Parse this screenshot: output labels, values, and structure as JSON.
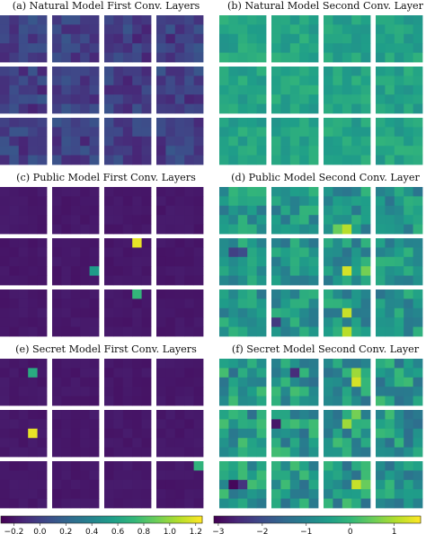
{
  "colormap": "viridis",
  "chart_data": [
    {
      "type": "heatmap",
      "title": "(a) Natural Model First Conv. Layers",
      "grid": "3x4 filters, 5x5 each",
      "colorbar_ref": "left",
      "value_range": [
        -0.15,
        0.12
      ],
      "hotspots": []
    },
    {
      "type": "heatmap",
      "title": "(b) Natural Model Second Conv. Layer",
      "grid": "3x4 filters, 5x5 each",
      "colorbar_ref": "right",
      "value_range": [
        -0.7,
        -0.05
      ],
      "hotspots": []
    },
    {
      "type": "heatmap",
      "title": "(c) Public Model First Conv. Layers",
      "grid": "3x4 filters, 5x5 each",
      "colorbar_ref": "left",
      "value_range": [
        -0.22,
        -0.18
      ],
      "hotspots": [
        {
          "tile": [
            1,
            2
          ],
          "cell": [
            0,
            3
          ],
          "value": 1.2
        },
        {
          "tile": [
            1,
            1
          ],
          "cell": [
            3,
            4
          ],
          "value": 0.55
        },
        {
          "tile": [
            2,
            2
          ],
          "cell": [
            0,
            3
          ],
          "value": 0.72
        }
      ]
    },
    {
      "type": "heatmap",
      "title": "(d) Public Model Second Conv. Layer",
      "grid": "3x4 filters, 5x5 each",
      "colorbar_ref": "right",
      "value_range": [
        -1.3,
        0.0
      ],
      "hotspots": [
        {
          "tile": [
            1,
            0
          ],
          "cell": [
            1,
            1
          ],
          "value": -2.2
        },
        {
          "tile": [
            1,
            0
          ],
          "cell": [
            1,
            2
          ],
          "value": -2.0
        },
        {
          "tile": [
            1,
            2
          ],
          "cell": [
            3,
            2
          ],
          "value": 1.3
        },
        {
          "tile": [
            1,
            2
          ],
          "cell": [
            3,
            4
          ],
          "value": 0.6
        },
        {
          "tile": [
            0,
            2
          ],
          "cell": [
            4,
            2
          ],
          "value": 1.1
        },
        {
          "tile": [
            0,
            2
          ],
          "cell": [
            4,
            1
          ],
          "value": 0.5
        },
        {
          "tile": [
            2,
            2
          ],
          "cell": [
            2,
            2
          ],
          "value": 1.2
        },
        {
          "tile": [
            2,
            2
          ],
          "cell": [
            4,
            2
          ],
          "value": 1.1
        },
        {
          "tile": [
            2,
            1
          ],
          "cell": [
            3,
            0
          ],
          "value": -2.3
        }
      ]
    },
    {
      "type": "heatmap",
      "title": "(e) Secret Model First Conv. Layers",
      "grid": "3x4 filters, 5x5 each",
      "colorbar_ref": "left",
      "value_range": [
        -0.22,
        -0.18
      ],
      "hotspots": [
        {
          "tile": [
            0,
            0
          ],
          "cell": [
            1,
            3
          ],
          "value": 0.65
        },
        {
          "tile": [
            1,
            0
          ],
          "cell": [
            2,
            3
          ],
          "value": 1.2
        },
        {
          "tile": [
            2,
            3
          ],
          "cell": [
            0,
            4
          ],
          "value": 0.7
        }
      ]
    },
    {
      "type": "heatmap",
      "title": "(f) Secret Model Second Conv. Layer",
      "grid": "3x4 filters, 5x5 each",
      "colorbar_ref": "right",
      "value_range": [
        -1.4,
        0.2
      ],
      "hotspots": [
        {
          "tile": [
            0,
            2
          ],
          "cell": [
            2,
            3
          ],
          "value": 1.3
        },
        {
          "tile": [
            0,
            2
          ],
          "cell": [
            1,
            3
          ],
          "value": 0.9
        },
        {
          "tile": [
            0,
            1
          ],
          "cell": [
            1,
            2
          ],
          "value": -2.5
        },
        {
          "tile": [
            1,
            1
          ],
          "cell": [
            1,
            0
          ],
          "value": -2.8
        },
        {
          "tile": [
            1,
            2
          ],
          "cell": [
            1,
            2
          ],
          "value": 0.9
        },
        {
          "tile": [
            1,
            2
          ],
          "cell": [
            0,
            3
          ],
          "value": 0.6
        },
        {
          "tile": [
            2,
            0
          ],
          "cell": [
            2,
            1
          ],
          "value": -3.0
        },
        {
          "tile": [
            2,
            0
          ],
          "cell": [
            2,
            2
          ],
          "value": -2.4
        },
        {
          "tile": [
            2,
            2
          ],
          "cell": [
            2,
            3
          ],
          "value": 1.2
        },
        {
          "tile": [
            2,
            2
          ],
          "cell": [
            2,
            4
          ],
          "value": 0.5
        }
      ]
    }
  ],
  "colorbars": {
    "left": {
      "type": "colorbar",
      "min": -0.3,
      "max": 1.25,
      "ticks": [
        -0.2,
        0.0,
        0.2,
        0.4,
        0.6,
        0.8,
        1.0,
        1.2
      ],
      "tick_labels": [
        "−0.2",
        "0.0",
        "0.2",
        "0.4",
        "0.6",
        "0.8",
        "1.0",
        "1.2"
      ]
    },
    "right": {
      "type": "colorbar",
      "min": -3.1,
      "max": 1.6,
      "ticks": [
        -3,
        -2,
        -1,
        0,
        1
      ],
      "tick_labels": [
        "−3",
        "−2",
        "−1",
        "0",
        "1"
      ]
    }
  }
}
